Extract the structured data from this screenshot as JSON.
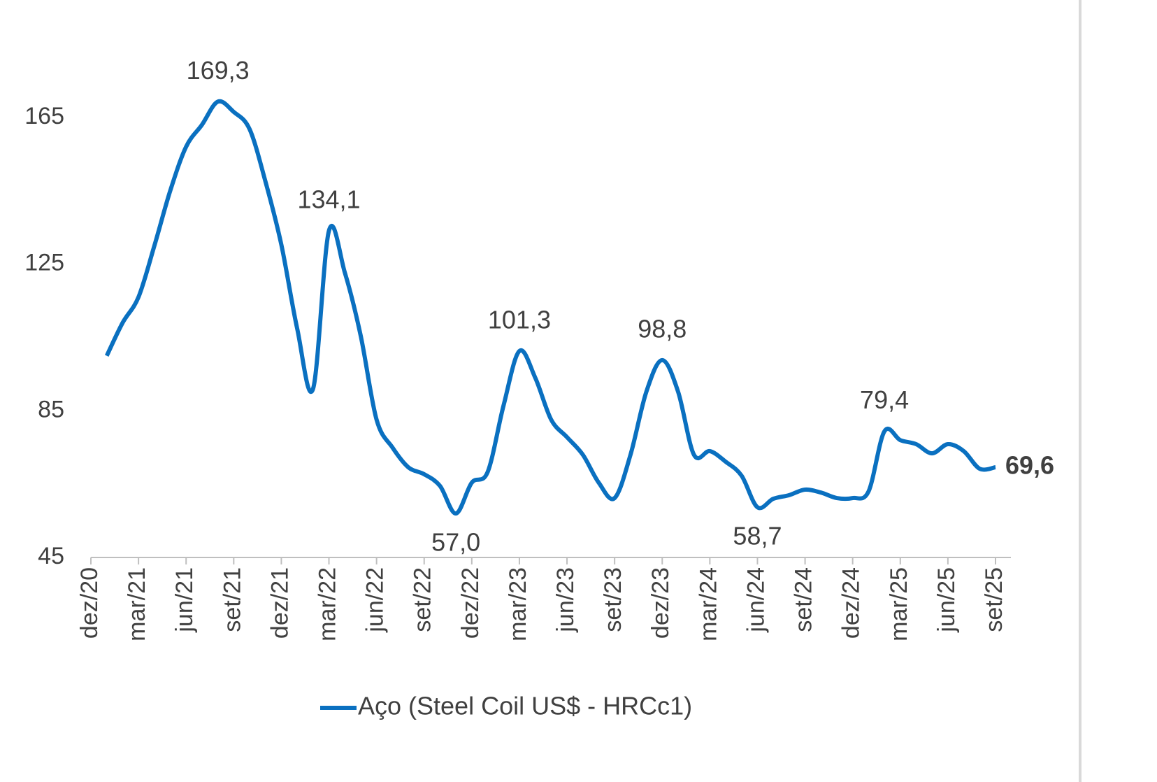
{
  "chart_data": {
    "type": "line",
    "categories": [
      "dez/20",
      null,
      null,
      "mar/21",
      null,
      null,
      "jun/21",
      null,
      null,
      "set/21",
      null,
      null,
      "dez/21",
      null,
      null,
      "mar/22",
      null,
      null,
      "jun/22",
      null,
      null,
      "set/22",
      null,
      null,
      "dez/22",
      null,
      null,
      "mar/23",
      null,
      null,
      "jun/23",
      null,
      null,
      "set/23",
      null,
      null,
      "dez/23",
      null,
      null,
      "mar/24",
      null,
      null,
      "jun/24",
      null,
      null,
      "set/24",
      null,
      null,
      "dez/24",
      null,
      null,
      "mar/25",
      null,
      null,
      "jun/25",
      null,
      null,
      "set/25"
    ],
    "series": [
      {
        "name": "Aço (Steel Coil US$ - HRCc1)",
        "color": "#0a70c0",
        "values": [
          null,
          100,
          109,
          116,
          130,
          145,
          157,
          163,
          169.3,
          166.5,
          161.8,
          147.5,
          130.3,
          107.4,
          91,
          134.1,
          122.7,
          105.5,
          82.6,
          75,
          69.6,
          67.7,
          64.5,
          57.0,
          65.4,
          68.3,
          86.4,
          101.3,
          94,
          82.6,
          77.8,
          73,
          65.4,
          61.2,
          73,
          90.2,
          98.8,
          90.2,
          73,
          74,
          71.1,
          67.3,
          58.7,
          61,
          62,
          63.5,
          62.7,
          61.2,
          61.2,
          63,
          79.4,
          77,
          75.9,
          73.4,
          75.9,
          74,
          69.2,
          69.6
        ],
        "value_labels": [
          null,
          null,
          null,
          null,
          null,
          null,
          null,
          null,
          "169,3",
          null,
          null,
          null,
          null,
          null,
          null,
          "134,1",
          null,
          null,
          null,
          null,
          null,
          null,
          null,
          "57,0",
          null,
          null,
          null,
          "101,3",
          null,
          null,
          null,
          null,
          null,
          null,
          null,
          null,
          "98,8",
          null,
          null,
          null,
          null,
          null,
          "58,7",
          null,
          null,
          null,
          null,
          null,
          null,
          null,
          "79,4",
          null,
          null,
          null,
          null,
          null,
          null,
          "69,6"
        ]
      }
    ],
    "ylim": [
      45,
      185
    ],
    "yticks": [
      45,
      85,
      125,
      165
    ],
    "grid": false,
    "legend": "bottom"
  }
}
